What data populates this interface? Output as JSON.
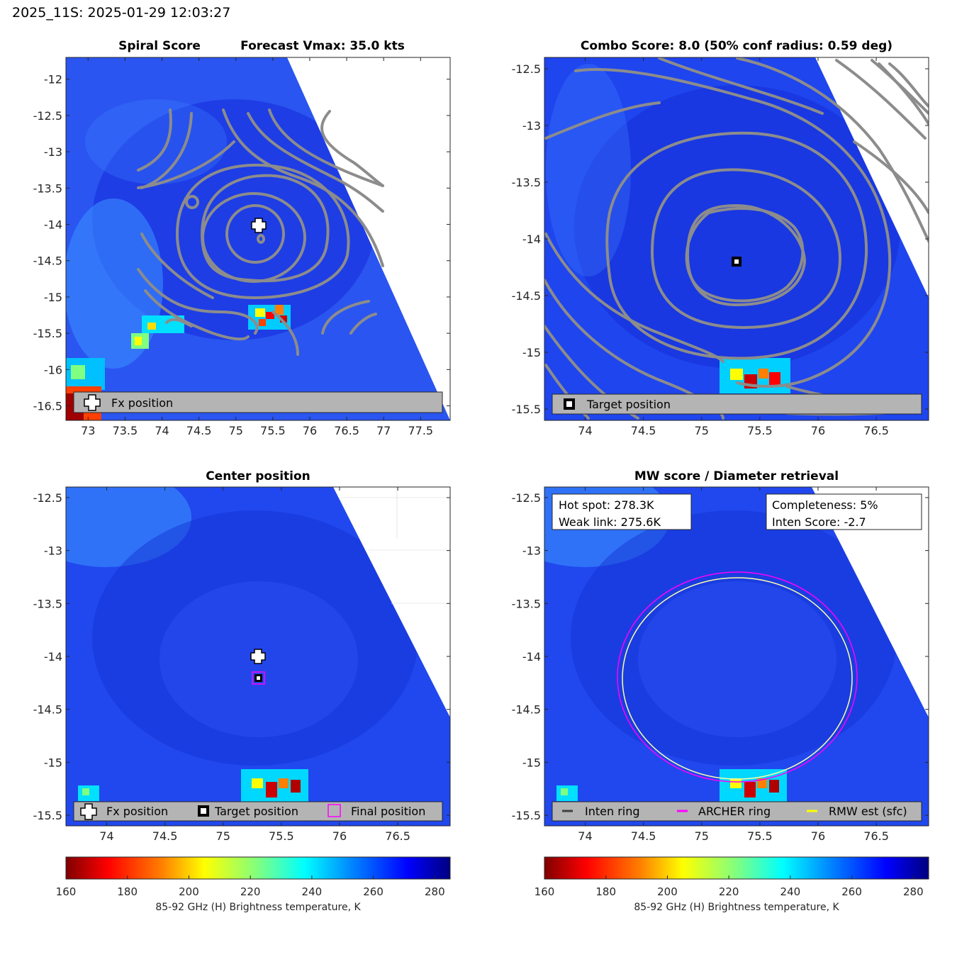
{
  "header": {
    "title": "2025_11S: 2025-01-29 12:03:27"
  },
  "colorbar": {
    "label": "85-92 GHz (H) Brightness temperature, K",
    "ticks": [
      160,
      180,
      200,
      220,
      240,
      260,
      280
    ],
    "range": [
      160,
      285
    ],
    "colormap": "jet-reversed",
    "colors": [
      "#800000",
      "#ff0000",
      "#ff8000",
      "#ffff00",
      "#80ff80",
      "#00ffff",
      "#0080ff",
      "#0000ff",
      "#000080"
    ]
  },
  "colors": {
    "background_scene": "#1a3fe8",
    "contour": "#8c8c8c",
    "legend_bg": "#b4b4b4",
    "archer_ring": "#ff00ff",
    "rmw_ring": "#ffff00",
    "inten_ring": "#404040"
  },
  "chart_data": [
    {
      "type": "heatmap",
      "id": "spiral",
      "title_left": "Spiral Score",
      "title_right": "Forecast Vmax: 35.0 kts",
      "xlim": [
        72.7,
        77.9
      ],
      "ylim": [
        -16.7,
        -11.7
      ],
      "xticks": [
        73,
        73.5,
        74,
        74.5,
        75,
        75.5,
        76,
        76.5,
        77,
        77.5
      ],
      "yticks": [
        -12,
        -12.5,
        -13,
        -13.5,
        -14,
        -14.5,
        -15,
        -15.5,
        -16,
        -16.5
      ],
      "swath_edge": [
        [
          75.4,
          -11.7
        ],
        [
          77.9,
          -16.7
        ]
      ],
      "markers": [
        {
          "symbol": "plus",
          "lon": 75.3,
          "lat": -14.0
        }
      ],
      "contour_center": [
        75.3,
        -14.2
      ],
      "legend": [
        "Fx position"
      ]
    },
    {
      "type": "heatmap",
      "id": "combo",
      "title": "Combo Score: 8.0  (50% conf radius: 0.59 deg)",
      "xlim": [
        73.65,
        76.95
      ],
      "ylim": [
        -15.6,
        -12.4
      ],
      "xticks": [
        74,
        74.5,
        75,
        75.5,
        76,
        76.5
      ],
      "yticks": [
        -12.5,
        -13,
        -13.5,
        -14,
        -14.5,
        -15,
        -15.5
      ],
      "swath_edge": [
        [
          76.0,
          -12.4
        ],
        [
          76.95,
          -14.9
        ]
      ],
      "markers": [
        {
          "symbol": "square",
          "lon": 75.3,
          "lat": -14.2
        }
      ],
      "contour_center": [
        75.3,
        -14.2
      ],
      "legend": [
        "Target position"
      ]
    },
    {
      "type": "heatmap",
      "id": "center",
      "title": "Center position",
      "xlim": [
        73.65,
        76.95
      ],
      "ylim": [
        -15.6,
        -12.4
      ],
      "xticks": [
        74,
        74.5,
        75,
        75.5,
        76,
        76.5
      ],
      "yticks": [
        -12.5,
        -13,
        -13.5,
        -14,
        -14.5,
        -15,
        -15.5
      ],
      "swath_edge": [
        [
          75.9,
          -12.4
        ],
        [
          76.95,
          -14.95
        ]
      ],
      "markers": [
        {
          "symbol": "plus",
          "lon": 75.3,
          "lat": -14.0
        },
        {
          "symbol": "square",
          "lon": 75.3,
          "lat": -14.2
        },
        {
          "symbol": "magenta-square",
          "lon": 75.3,
          "lat": -14.2
        }
      ],
      "legend": [
        "Fx position",
        "Target position",
        "Final position"
      ]
    },
    {
      "type": "heatmap",
      "id": "mw",
      "title": "MW score / Diameter retrieval",
      "xlim": [
        73.65,
        76.95
      ],
      "ylim": [
        -15.6,
        -12.4
      ],
      "xticks": [
        74,
        74.5,
        75,
        75.5,
        76,
        76.5
      ],
      "yticks": [
        -12.5,
        -13,
        -13.5,
        -14,
        -14.5,
        -15,
        -15.5
      ],
      "swath_edge": [
        [
          75.9,
          -12.4
        ],
        [
          76.95,
          -14.95
        ]
      ],
      "info_left": [
        "Hot spot: 278.3K",
        "Weak link: 275.6K"
      ],
      "info_right": [
        "Completeness: 5%",
        "Inten Score: -2.7"
      ],
      "rings": [
        {
          "name": "ARCHER ring",
          "center": [
            75.3,
            -14.2
          ],
          "rx": 1.03,
          "ry": 0.97
        },
        {
          "name": "RMW est (sfc)",
          "center": [
            75.3,
            -14.2
          ],
          "rx": 0.99,
          "ry": 0.95
        }
      ],
      "legend": [
        "Inten ring",
        "ARCHER ring",
        "RMW est (sfc)"
      ]
    }
  ]
}
